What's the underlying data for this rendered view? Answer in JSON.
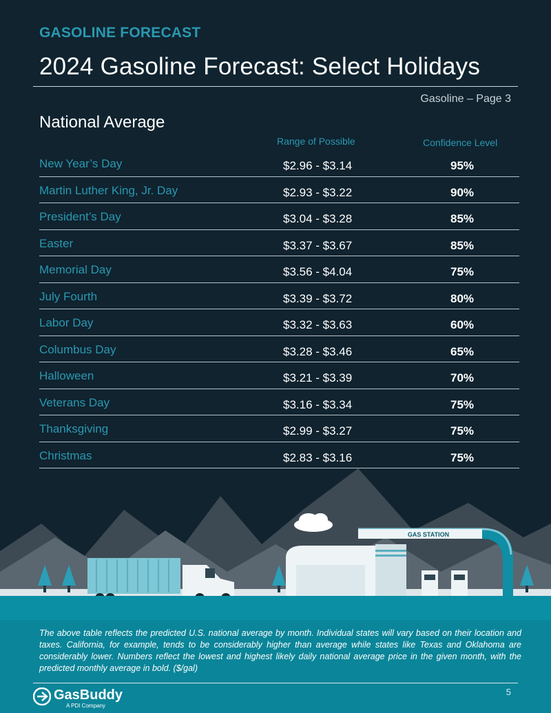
{
  "header": {
    "eyebrow": "GASOLINE FORECAST",
    "title": "2024 Gasoline Forecast: Select Holidays",
    "page_label": "Gasoline – Page 3"
  },
  "section": {
    "title": "National Average",
    "col_range": "Range of Possible",
    "col_confidence": "Confidence Level"
  },
  "rows": [
    {
      "holiday": "New Year’s Day",
      "range": "$2.96 - $3.14",
      "confidence": "95%"
    },
    {
      "holiday": "Martin Luther King, Jr. Day",
      "range": "$2.93 - $3.22",
      "confidence": "90%"
    },
    {
      "holiday": "President’s Day",
      "range": "$3.04 - $3.28",
      "confidence": "85%"
    },
    {
      "holiday": "Easter",
      "range": "$3.37 - $3.67",
      "confidence": "85%"
    },
    {
      "holiday": "Memorial Day",
      "range": "$3.56 - $4.04",
      "confidence": "75%"
    },
    {
      "holiday": "July Fourth",
      "range": "$3.39 - $3.72",
      "confidence": "80%"
    },
    {
      "holiday": "Labor Day",
      "range": "$3.32 - $3.63",
      "confidence": "60%"
    },
    {
      "holiday": "Columbus Day",
      "range": "$3.28 - $3.46",
      "confidence": "65%"
    },
    {
      "holiday": "Halloween",
      "range": "$3.21 - $3.39",
      "confidence": "70%"
    },
    {
      "holiday": "Veterans Day",
      "range": "$3.16 - $3.34",
      "confidence": "75%"
    },
    {
      "holiday": "Thanksgiving",
      "range": "$2.99 - $3.27",
      "confidence": "75%"
    },
    {
      "holiday": "Christmas",
      "range": "$2.83 - $3.16",
      "confidence": "75%"
    }
  ],
  "illustration": {
    "station_sign": "GAS STATION"
  },
  "footnote": "The above table reflects the predicted U.S. national average by month. Individual states will vary based on their location and taxes. California, for example, tends to be considerably higher than average while states like Texas and Oklahoma are considerably lower. Numbers reflect the lowest and highest likely daily national average price in the given month, with the predicted monthly average in bold. ($/gal)",
  "footer": {
    "brand": "GasBuddy",
    "brand_sub": "A PDI Company",
    "page_number": "5"
  },
  "colors": {
    "background": "#10232f",
    "accent": "#2a98b0",
    "ground": "#0b8fa4"
  }
}
